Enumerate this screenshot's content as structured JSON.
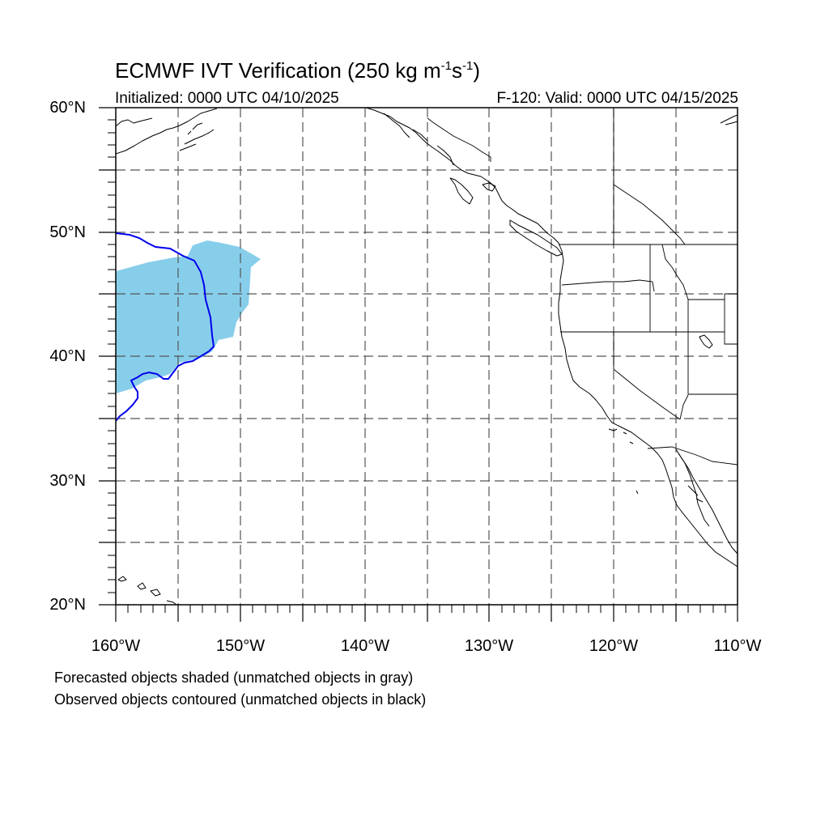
{
  "title": {
    "prefix": "ECMWF IVT Verification (250 kg m",
    "exp1": "-1",
    "mid": "s",
    "exp2": "-1",
    "suffix": ")"
  },
  "subtitle_left": "Initialized: 0000 UTC 04/10/2025",
  "subtitle_right": "F-120: Valid: 0000 UTC 04/15/2025",
  "lat_labels": [
    "60°N",
    "50°N",
    "40°N",
    "30°N",
    "20°N"
  ],
  "lon_labels": [
    "160°W",
    "150°W",
    "140°W",
    "130°W",
    "120°W",
    "110°W"
  ],
  "notes": [
    "Forecasted objects shaded (unmatched objects in gray)",
    "Observed objects contoured (unmatched objects in black)"
  ],
  "map": {
    "lon_range": [
      -160,
      -110
    ],
    "lat_range": [
      20,
      60
    ],
    "grid_spacing_deg": 5,
    "forecast_fill_color": "#87ceeb",
    "observed_contour_color": "#0000ee",
    "coastline_color": "#000000",
    "gridline_color": "#555555"
  }
}
